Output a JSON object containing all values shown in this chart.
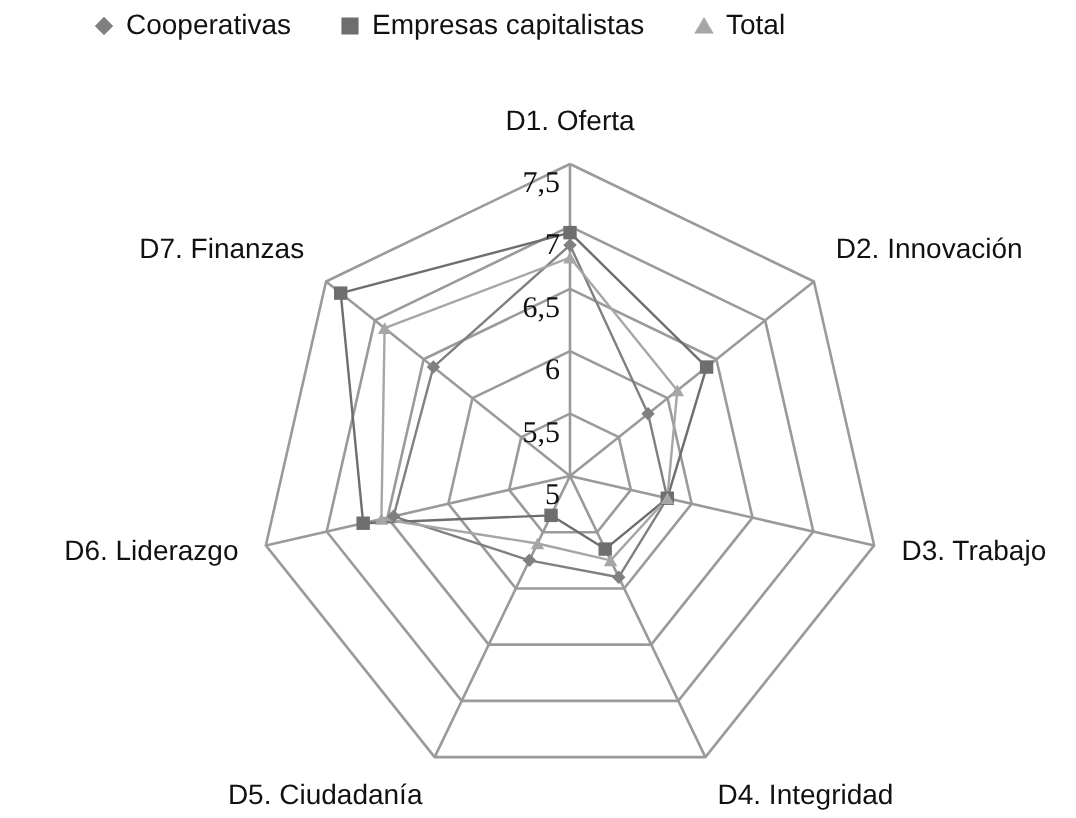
{
  "chart_data": {
    "type": "radar",
    "categories": [
      "D1. Oferta",
      "D2. Innovación",
      "D3. Trabajo",
      "D4. Integridad",
      "D5. Ciudadanía",
      "D6. Liderazgo",
      "D7. Finanzas"
    ],
    "ylim": [
      5,
      7.5
    ],
    "yticks": [
      5,
      {
        "value": 5.5,
        "label": "5,5"
      },
      6,
      {
        "value": 6.5,
        "label": "6,5"
      },
      7,
      {
        "value": 7.5,
        "label": "7,5"
      }
    ],
    "legend": "top",
    "grid": true,
    "series": [
      {
        "name": "Cooperativas",
        "color": "#808080",
        "marker": "diamond",
        "values": [
          6.85,
          5.8,
          5.8,
          5.9,
          5.75,
          6.45,
          6.4
        ]
      },
      {
        "name": "Empresas capitalistas",
        "color": "#6e6e6e",
        "marker": "square",
        "values": [
          6.95,
          6.4,
          5.8,
          5.65,
          5.35,
          6.7,
          7.35
        ]
      },
      {
        "name": "Total",
        "color": "#a6a6a6",
        "marker": "triangle",
        "values": [
          6.75,
          6.1,
          5.8,
          5.75,
          5.6,
          6.55,
          6.9
        ]
      }
    ]
  }
}
